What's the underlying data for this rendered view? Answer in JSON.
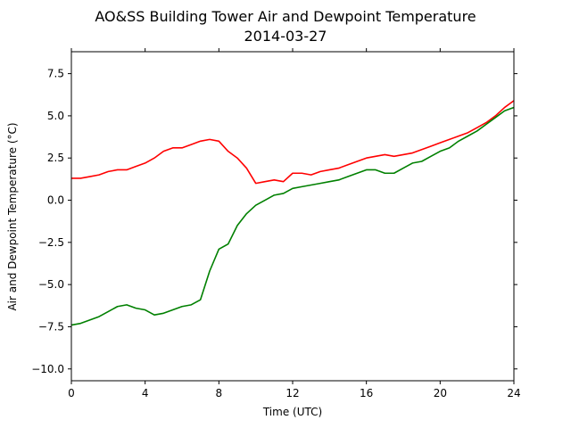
{
  "chart_data": {
    "type": "line",
    "title": "AO&SS Building Tower Air and Dewpoint Temperature",
    "subtitle": "2014-03-27",
    "xlabel": "Time (UTC)",
    "ylabel": "Air and Dewpoint Temperature (°C)",
    "xlim": [
      0,
      24
    ],
    "ylim": [
      -10.7,
      8.8
    ],
    "x_ticks": [
      0,
      4,
      8,
      12,
      16,
      20,
      24
    ],
    "y_ticks": [
      -10.0,
      -7.5,
      -5.0,
      -2.5,
      0.0,
      2.5,
      5.0,
      7.5
    ],
    "grid": false,
    "legend": "none",
    "series": [
      {
        "color": "#ff0000",
        "x": [
          0,
          0.5,
          1,
          1.5,
          2,
          2.5,
          3,
          3.5,
          4,
          4.5,
          5,
          5.5,
          6,
          6.5,
          7,
          7.5,
          8,
          8.5,
          9,
          9.5,
          10,
          10.5,
          11,
          11.5,
          12,
          12.5,
          13,
          13.5,
          14,
          14.5,
          15,
          15.5,
          16,
          16.5,
          17,
          17.5,
          18,
          18.5,
          19,
          19.5,
          20,
          20.5,
          21,
          21.5,
          22,
          22.5,
          23,
          23.5,
          24
        ],
        "values": [
          1.3,
          1.3,
          1.4,
          1.5,
          1.7,
          1.8,
          1.8,
          2.0,
          2.2,
          2.5,
          2.9,
          3.1,
          3.1,
          3.3,
          3.5,
          3.6,
          3.5,
          2.9,
          2.5,
          1.9,
          1.0,
          1.1,
          1.2,
          1.1,
          1.6,
          1.6,
          1.5,
          1.7,
          1.8,
          1.9,
          2.1,
          2.3,
          2.5,
          2.6,
          2.7,
          2.6,
          2.7,
          2.8,
          3.0,
          3.2,
          3.4,
          3.6,
          3.8,
          4.0,
          4.3,
          4.6,
          5.0,
          5.5,
          5.9
        ]
      },
      {
        "color": "#008000",
        "x": [
          0,
          0.5,
          1,
          1.5,
          2,
          2.5,
          3,
          3.5,
          4,
          4.5,
          5,
          5.5,
          6,
          6.5,
          7,
          7.5,
          8,
          8.5,
          9,
          9.5,
          10,
          10.5,
          11,
          11.5,
          12,
          12.5,
          13,
          13.5,
          14,
          14.5,
          15,
          15.5,
          16,
          16.5,
          17,
          17.5,
          18,
          18.5,
          19,
          19.5,
          20,
          20.5,
          21,
          21.5,
          22,
          22.5,
          23,
          23.5,
          24
        ],
        "values": [
          -7.4,
          -7.3,
          -7.1,
          -6.9,
          -6.6,
          -6.3,
          -6.2,
          -6.4,
          -6.5,
          -6.8,
          -6.7,
          -6.5,
          -6.3,
          -6.2,
          -5.9,
          -4.2,
          -2.9,
          -2.6,
          -1.5,
          -0.8,
          -0.3,
          0.0,
          0.3,
          0.4,
          0.7,
          0.8,
          0.9,
          1.0,
          1.1,
          1.2,
          1.4,
          1.6,
          1.8,
          1.8,
          1.6,
          1.6,
          1.9,
          2.2,
          2.3,
          2.6,
          2.9,
          3.1,
          3.5,
          3.8,
          4.1,
          4.5,
          4.9,
          5.3,
          5.5
        ]
      }
    ]
  }
}
